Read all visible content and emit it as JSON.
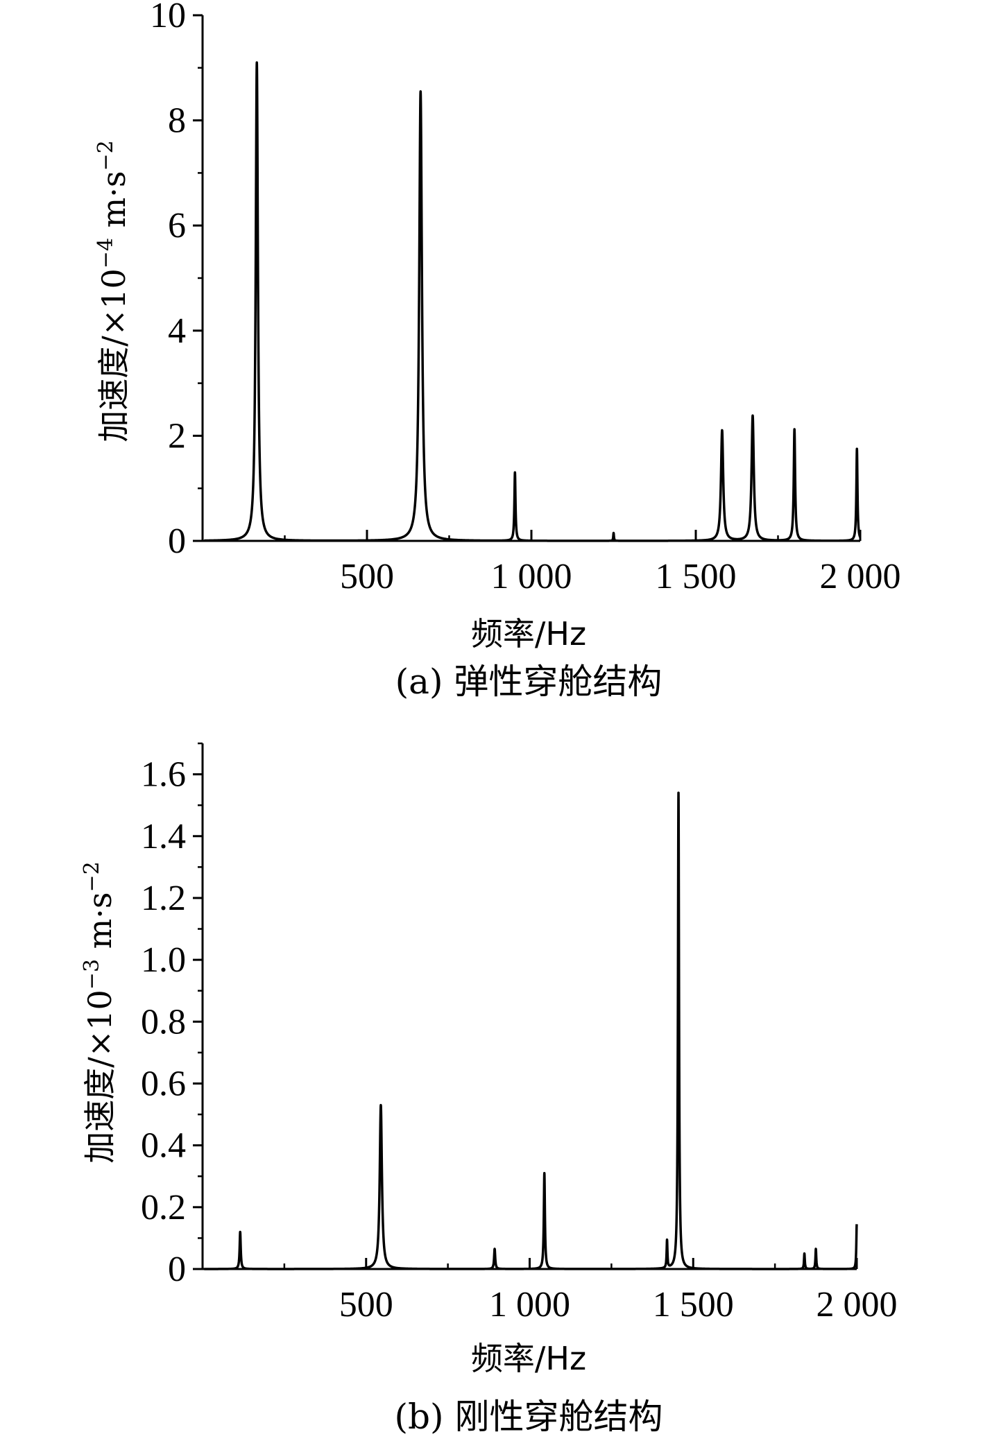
{
  "chart_data": [
    {
      "type": "line",
      "caption": "(a) 弹性穿舱结构",
      "xlabel": "频率/Hz",
      "ylabel": {
        "prefix": "加速度/×10",
        "exp": "−4",
        "mid": " m·s",
        "exp2": "−2"
      },
      "xlim": [
        0,
        2000
      ],
      "ylim": [
        0,
        10
      ],
      "xticks": [
        500,
        1000,
        1500,
        2000
      ],
      "xtick_labels": [
        "500",
        "1 000",
        "1 500",
        "2 000"
      ],
      "yticks": [
        0,
        2,
        4,
        6,
        8,
        10
      ],
      "ytick_labels": [
        "0",
        "2",
        "4",
        "6",
        "8",
        "10"
      ],
      "x_minor_step": 250,
      "y_minor_step": 1,
      "grid": false,
      "series": [
        {
          "peaks": [
            {
              "x": 165,
              "y": 9.1,
              "width": 4
            },
            {
              "x": 663,
              "y": 8.55,
              "width": 5
            },
            {
              "x": 950,
              "y": 1.3,
              "width": 2
            },
            {
              "x": 1580,
              "y": 2.1,
              "width": 4
            },
            {
              "x": 1673,
              "y": 2.38,
              "width": 4
            },
            {
              "x": 1800,
              "y": 2.12,
              "width": 2.5
            },
            {
              "x": 1990,
              "y": 1.75,
              "width": 2
            }
          ],
          "small_spikes": [
            {
              "x": 1250,
              "y": 0.15
            }
          ]
        }
      ]
    },
    {
      "type": "line",
      "caption": "(b) 刚性穿舱结构",
      "xlabel": "频率/Hz",
      "ylabel": {
        "prefix": "加速度/×10",
        "exp": "−3",
        "mid": " m·s",
        "exp2": "−2"
      },
      "xlim": [
        0,
        2000
      ],
      "ylim": [
        0,
        1.7
      ],
      "xticks": [
        500,
        1000,
        1500,
        2000
      ],
      "xtick_labels": [
        "500",
        "1 000",
        "1 500",
        "2 000"
      ],
      "yticks": [
        0,
        0.2,
        0.4,
        0.6,
        0.8,
        1.0,
        1.2,
        1.4,
        1.6
      ],
      "ytick_labels": [
        "0",
        "0.2",
        "0.4",
        "0.6",
        "0.8",
        "1.0",
        "1.2",
        "1.4",
        "1.6"
      ],
      "x_minor_step": 250,
      "y_minor_step": 0.1,
      "grid": false,
      "series": [
        {
          "peaks": [
            {
              "x": 115,
              "y": 0.12,
              "width": 2
            },
            {
              "x": 545,
              "y": 0.53,
              "width": 4
            },
            {
              "x": 893,
              "y": 0.065,
              "width": 2
            },
            {
              "x": 1045,
              "y": 0.31,
              "width": 2
            },
            {
              "x": 1420,
              "y": 0.09,
              "width": 1.5
            },
            {
              "x": 1455,
              "y": 1.54,
              "width": 2
            },
            {
              "x": 1840,
              "y": 0.05,
              "width": 1.5
            },
            {
              "x": 1875,
              "y": 0.065,
              "width": 1.5
            },
            {
              "x": 2000,
              "y": 0.145,
              "width": 1.5
            }
          ],
          "small_spikes": []
        }
      ]
    }
  ]
}
